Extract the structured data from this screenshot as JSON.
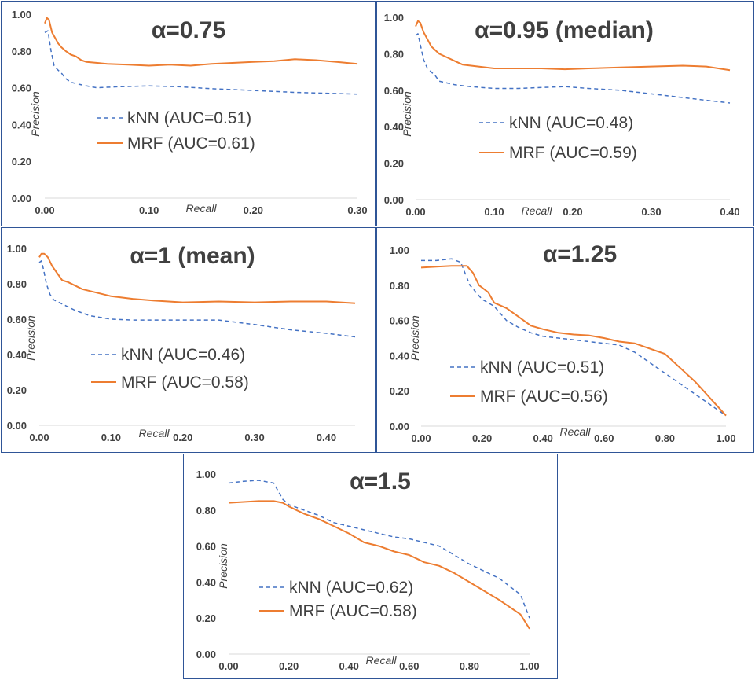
{
  "colors": {
    "knn": "#4472C4",
    "mrf": "#ED7D31",
    "panel_border": "#2F5597",
    "text": "#404040",
    "axis": "#D9D9D9"
  },
  "chart_data": [
    {
      "type": "line",
      "title": "α=0.75",
      "xlabel": "Recall",
      "ylabel": "Precision",
      "xlim": [
        0,
        0.3
      ],
      "ylim": [
        0,
        1.0
      ],
      "x_ticks": [
        "0.00",
        "0.10",
        "0.20",
        "0.30"
      ],
      "y_ticks": [
        "0.00",
        "0.20",
        "0.40",
        "0.60",
        "0.80",
        "1.00"
      ],
      "series": [
        {
          "name": "kNN (AUC=0.51)",
          "style": "dashed",
          "color": "#4472C4",
          "x": [
            0.0,
            0.003,
            0.006,
            0.009,
            0.012,
            0.016,
            0.02,
            0.025,
            0.032,
            0.04,
            0.05,
            0.07,
            0.1,
            0.13,
            0.16,
            0.2,
            0.24,
            0.27,
            0.3
          ],
          "y": [
            0.9,
            0.91,
            0.8,
            0.72,
            0.7,
            0.68,
            0.65,
            0.63,
            0.62,
            0.61,
            0.6,
            0.605,
            0.61,
            0.605,
            0.595,
            0.585,
            0.575,
            0.57,
            0.565
          ]
        },
        {
          "name": "MRF (AUC=0.61)",
          "style": "solid",
          "color": "#ED7D31",
          "x": [
            0.0,
            0.002,
            0.004,
            0.007,
            0.01,
            0.013,
            0.016,
            0.02,
            0.025,
            0.03,
            0.035,
            0.04,
            0.06,
            0.08,
            0.1,
            0.12,
            0.14,
            0.16,
            0.18,
            0.2,
            0.22,
            0.24,
            0.26,
            0.28,
            0.3
          ],
          "y": [
            0.95,
            0.98,
            0.97,
            0.9,
            0.87,
            0.84,
            0.82,
            0.8,
            0.78,
            0.77,
            0.75,
            0.74,
            0.73,
            0.725,
            0.72,
            0.725,
            0.72,
            0.73,
            0.735,
            0.74,
            0.745,
            0.755,
            0.75,
            0.74,
            0.73
          ]
        }
      ]
    },
    {
      "type": "line",
      "title": "α=0.95 (median)",
      "xlabel": "Recall",
      "ylabel": "Precision",
      "xlim": [
        0,
        0.4
      ],
      "ylim": [
        0,
        1.0
      ],
      "x_ticks": [
        "0.00",
        "0.10",
        "0.20",
        "0.30",
        "0.40"
      ],
      "y_ticks": [
        "0.00",
        "0.20",
        "0.40",
        "0.60",
        "0.80",
        "1.00"
      ],
      "series": [
        {
          "name": "kNN (AUC=0.48)",
          "style": "dashed",
          "color": "#4472C4",
          "x": [
            0.0,
            0.003,
            0.006,
            0.01,
            0.015,
            0.02,
            0.025,
            0.03,
            0.04,
            0.05,
            0.07,
            0.1,
            0.13,
            0.16,
            0.19,
            0.22,
            0.26,
            0.3,
            0.34,
            0.37,
            0.4
          ],
          "y": [
            0.9,
            0.91,
            0.85,
            0.77,
            0.72,
            0.7,
            0.68,
            0.65,
            0.64,
            0.63,
            0.62,
            0.61,
            0.61,
            0.615,
            0.62,
            0.61,
            0.6,
            0.58,
            0.56,
            0.545,
            0.53
          ]
        },
        {
          "name": "MRF (AUC=0.59)",
          "style": "solid",
          "color": "#ED7D31",
          "x": [
            0.0,
            0.003,
            0.006,
            0.01,
            0.015,
            0.02,
            0.03,
            0.04,
            0.05,
            0.06,
            0.08,
            0.1,
            0.13,
            0.16,
            0.19,
            0.22,
            0.26,
            0.3,
            0.34,
            0.37,
            0.4
          ],
          "y": [
            0.95,
            0.98,
            0.97,
            0.92,
            0.88,
            0.84,
            0.8,
            0.78,
            0.76,
            0.74,
            0.73,
            0.72,
            0.72,
            0.72,
            0.715,
            0.72,
            0.725,
            0.73,
            0.735,
            0.73,
            0.71
          ]
        }
      ]
    },
    {
      "type": "line",
      "title": "α=1 (mean)",
      "xlabel": "Recall",
      "ylabel": "Precision",
      "xlim": [
        0,
        0.44
      ],
      "ylim": [
        0,
        1.0
      ],
      "x_ticks": [
        "0.00",
        "0.10",
        "0.20",
        "0.30",
        "0.40"
      ],
      "y_ticks": [
        "0.00",
        "0.20",
        "0.40",
        "0.60",
        "0.80",
        "1.00"
      ],
      "series": [
        {
          "name": "kNN (AUC=0.46)",
          "style": "dashed",
          "color": "#4472C4",
          "x": [
            0.0,
            0.003,
            0.006,
            0.01,
            0.015,
            0.02,
            0.03,
            0.04,
            0.05,
            0.07,
            0.1,
            0.13,
            0.16,
            0.2,
            0.25,
            0.3,
            0.35,
            0.4,
            0.44
          ],
          "y": [
            0.92,
            0.93,
            0.88,
            0.8,
            0.74,
            0.71,
            0.69,
            0.67,
            0.65,
            0.62,
            0.6,
            0.595,
            0.595,
            0.595,
            0.595,
            0.57,
            0.54,
            0.52,
            0.5
          ]
        },
        {
          "name": "MRF (AUC=0.58)",
          "style": "solid",
          "color": "#ED7D31",
          "x": [
            0.0,
            0.003,
            0.007,
            0.012,
            0.018,
            0.025,
            0.032,
            0.04,
            0.05,
            0.06,
            0.08,
            0.1,
            0.13,
            0.16,
            0.2,
            0.25,
            0.3,
            0.35,
            0.4,
            0.44
          ],
          "y": [
            0.95,
            0.97,
            0.97,
            0.95,
            0.9,
            0.86,
            0.82,
            0.81,
            0.79,
            0.77,
            0.75,
            0.73,
            0.715,
            0.705,
            0.695,
            0.7,
            0.695,
            0.7,
            0.7,
            0.69
          ]
        }
      ]
    },
    {
      "type": "line",
      "title": "α=1.25",
      "xlabel": "Recall",
      "ylabel": "Precision",
      "xlim": [
        0,
        1.0
      ],
      "ylim": [
        0,
        1.0
      ],
      "x_ticks": [
        "0.00",
        "0.20",
        "0.40",
        "0.60",
        "0.80",
        "1.00"
      ],
      "y_ticks": [
        "0.00",
        "0.20",
        "0.40",
        "0.60",
        "0.80",
        "1.00"
      ],
      "series": [
        {
          "name": "kNN (AUC=0.51)",
          "style": "dashed",
          "color": "#4472C4",
          "x": [
            0.0,
            0.05,
            0.1,
            0.13,
            0.16,
            0.2,
            0.24,
            0.28,
            0.32,
            0.36,
            0.4,
            0.45,
            0.5,
            0.55,
            0.6,
            0.65,
            0.7,
            0.8,
            0.9,
            1.0
          ],
          "y": [
            0.94,
            0.94,
            0.95,
            0.93,
            0.8,
            0.72,
            0.68,
            0.6,
            0.56,
            0.53,
            0.51,
            0.5,
            0.49,
            0.48,
            0.47,
            0.46,
            0.42,
            0.3,
            0.18,
            0.06
          ]
        },
        {
          "name": "MRF (AUC=0.56)",
          "style": "solid",
          "color": "#ED7D31",
          "x": [
            0.0,
            0.05,
            0.1,
            0.15,
            0.17,
            0.19,
            0.22,
            0.24,
            0.28,
            0.32,
            0.36,
            0.4,
            0.45,
            0.5,
            0.55,
            0.6,
            0.65,
            0.7,
            0.75,
            0.8,
            0.9,
            1.0
          ],
          "y": [
            0.9,
            0.905,
            0.91,
            0.91,
            0.87,
            0.8,
            0.76,
            0.7,
            0.67,
            0.62,
            0.57,
            0.55,
            0.53,
            0.52,
            0.515,
            0.5,
            0.48,
            0.47,
            0.44,
            0.41,
            0.25,
            0.06
          ]
        }
      ]
    },
    {
      "type": "line",
      "title": "α=1.5",
      "xlabel": "Recall",
      "ylabel": "Precision",
      "xlim": [
        0,
        1.0
      ],
      "ylim": [
        0,
        1.0
      ],
      "x_ticks": [
        "0.00",
        "0.20",
        "0.40",
        "0.60",
        "0.80",
        "1.00"
      ],
      "y_ticks": [
        "0.00",
        "0.20",
        "0.40",
        "0.60",
        "0.80",
        "1.00"
      ],
      "series": [
        {
          "name": "kNN (AUC=0.62)",
          "style": "dashed",
          "color": "#4472C4",
          "x": [
            0.0,
            0.05,
            0.1,
            0.15,
            0.18,
            0.2,
            0.25,
            0.3,
            0.35,
            0.4,
            0.45,
            0.5,
            0.55,
            0.6,
            0.65,
            0.7,
            0.75,
            0.8,
            0.9,
            0.97,
            1.0
          ],
          "y": [
            0.95,
            0.96,
            0.965,
            0.95,
            0.86,
            0.83,
            0.8,
            0.77,
            0.73,
            0.71,
            0.69,
            0.67,
            0.65,
            0.64,
            0.62,
            0.6,
            0.55,
            0.5,
            0.42,
            0.33,
            0.2
          ]
        },
        {
          "name": "MRF (AUC=0.58)",
          "style": "solid",
          "color": "#ED7D31",
          "x": [
            0.0,
            0.05,
            0.1,
            0.15,
            0.18,
            0.2,
            0.25,
            0.3,
            0.35,
            0.4,
            0.45,
            0.5,
            0.55,
            0.6,
            0.65,
            0.7,
            0.75,
            0.8,
            0.9,
            0.97,
            1.0
          ],
          "y": [
            0.84,
            0.845,
            0.85,
            0.85,
            0.84,
            0.82,
            0.78,
            0.75,
            0.71,
            0.67,
            0.62,
            0.6,
            0.57,
            0.55,
            0.51,
            0.49,
            0.45,
            0.4,
            0.3,
            0.22,
            0.14
          ]
        }
      ]
    }
  ]
}
